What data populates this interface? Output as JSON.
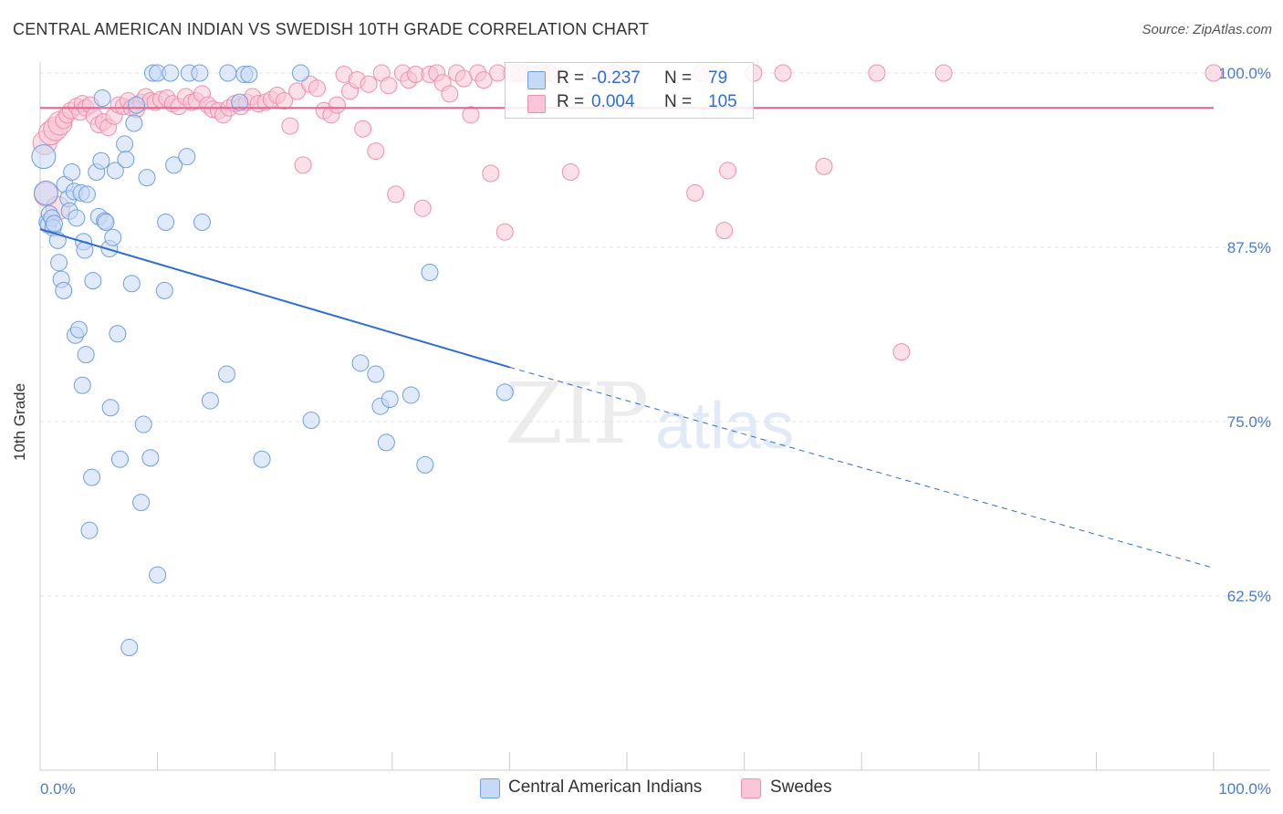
{
  "title": "CENTRAL AMERICAN INDIAN VS SWEDISH 10TH GRADE CORRELATION CHART",
  "source": "Source: ZipAtlas.com",
  "watermark": {
    "zip": "ZIP",
    "atlas": "atlas"
  },
  "legend": {
    "r_label": "R =",
    "n_label": "N =",
    "series": [
      {
        "r": "-0.237",
        "n": "79"
      },
      {
        "r": "0.004",
        "n": "105"
      }
    ]
  },
  "bottom_legend": [
    "Central American Indians",
    "Swedes"
  ],
  "colors": {
    "blue_fill": "#c6d9f5",
    "blue_stroke": "#6f9fe0",
    "blue_line": "#2f6dd1",
    "pink_fill": "#f8c6d6",
    "pink_stroke": "#ee8fae",
    "pink_line": "#e8638c",
    "grid": "#e3e3e3",
    "axis_label": "#4a7bd0"
  },
  "chart_data": {
    "type": "scatter",
    "title": "CENTRAL AMERICAN INDIAN VS SWEDISH 10TH GRADE CORRELATION CHART",
    "xlabel": "",
    "ylabel": "10th Grade",
    "xlim": [
      0,
      100
    ],
    "ylim": [
      50,
      100
    ],
    "x_tick_labels": [
      "0.0%",
      "100.0%"
    ],
    "y_ticks": [
      100.0,
      87.5,
      75.0,
      62.5
    ],
    "y_tick_labels": [
      "100.0%",
      "87.5%",
      "75.0%",
      "62.5%"
    ],
    "grid": true,
    "legend_placement": "top-center",
    "series": [
      {
        "name": "Central American Indians",
        "r": -0.237,
        "n": 79,
        "trend": {
          "x0": 0,
          "y0": 88.8,
          "x1": 40,
          "y1": 78.9,
          "dash_to_x": 100,
          "dash_to_y": 64.5
        },
        "points": [
          [
            0.3,
            94.0
          ],
          [
            0.5,
            91.4
          ],
          [
            0.6,
            89.3
          ],
          [
            0.7,
            89.1
          ],
          [
            0.8,
            89.9
          ],
          [
            1.0,
            89.6
          ],
          [
            1.1,
            88.9
          ],
          [
            1.2,
            89.2
          ],
          [
            1.5,
            88.0
          ],
          [
            1.6,
            86.4
          ],
          [
            1.8,
            85.2
          ],
          [
            2.0,
            84.4
          ],
          [
            2.1,
            92.0
          ],
          [
            2.4,
            91.0
          ],
          [
            2.5,
            90.1
          ],
          [
            2.7,
            92.9
          ],
          [
            2.9,
            91.5
          ],
          [
            3.0,
            81.2
          ],
          [
            3.1,
            89.6
          ],
          [
            3.3,
            81.6
          ],
          [
            3.5,
            91.4
          ],
          [
            3.6,
            77.6
          ],
          [
            3.7,
            87.9
          ],
          [
            3.8,
            87.3
          ],
          [
            3.9,
            79.8
          ],
          [
            4.0,
            91.3
          ],
          [
            4.2,
            67.2
          ],
          [
            4.4,
            71.0
          ],
          [
            4.5,
            85.1
          ],
          [
            4.8,
            92.9
          ],
          [
            5.0,
            89.7
          ],
          [
            5.2,
            93.7
          ],
          [
            5.3,
            98.2
          ],
          [
            5.5,
            89.4
          ],
          [
            5.6,
            89.3
          ],
          [
            5.9,
            87.4
          ],
          [
            6.0,
            76.0
          ],
          [
            6.2,
            88.2
          ],
          [
            6.4,
            93.0
          ],
          [
            6.6,
            81.3
          ],
          [
            6.8,
            72.3
          ],
          [
            7.2,
            94.9
          ],
          [
            7.3,
            93.8
          ],
          [
            7.6,
            58.8
          ],
          [
            7.8,
            84.9
          ],
          [
            8.0,
            96.4
          ],
          [
            8.2,
            97.7
          ],
          [
            8.6,
            69.2
          ],
          [
            8.8,
            74.8
          ],
          [
            9.1,
            92.5
          ],
          [
            9.4,
            72.4
          ],
          [
            9.6,
            100
          ],
          [
            10.0,
            100
          ],
          [
            10.0,
            64.0
          ],
          [
            10.6,
            84.4
          ],
          [
            10.7,
            89.3
          ],
          [
            11.1,
            100
          ],
          [
            11.4,
            93.4
          ],
          [
            12.5,
            94.0
          ],
          [
            12.7,
            100
          ],
          [
            13.6,
            100
          ],
          [
            13.8,
            89.3
          ],
          [
            14.5,
            76.5
          ],
          [
            15.9,
            78.4
          ],
          [
            16.0,
            100
          ],
          [
            17.0,
            97.9
          ],
          [
            17.4,
            99.9
          ],
          [
            17.8,
            99.9
          ],
          [
            18.9,
            72.3
          ],
          [
            22.2,
            100
          ],
          [
            23.1,
            75.1
          ],
          [
            27.3,
            79.2
          ],
          [
            28.6,
            78.4
          ],
          [
            29.0,
            76.1
          ],
          [
            29.5,
            73.5
          ],
          [
            29.8,
            76.6
          ],
          [
            31.6,
            76.9
          ],
          [
            32.8,
            71.9
          ],
          [
            33.2,
            85.7
          ],
          [
            39.6,
            77.1
          ]
        ]
      },
      {
        "name": "Swedes",
        "r": 0.004,
        "n": 105,
        "trend": {
          "x0": 0,
          "y0": 97.5,
          "x1": 100,
          "y1": 97.5
        },
        "points": [
          [
            0.4,
            95.0
          ],
          [
            0.5,
            91.3
          ],
          [
            0.9,
            95.7
          ],
          [
            1.3,
            96.0
          ],
          [
            1.5,
            90.3
          ],
          [
            1.7,
            96.4
          ],
          [
            2.0,
            96.6
          ],
          [
            2.3,
            97.0
          ],
          [
            2.6,
            97.3
          ],
          [
            3.1,
            97.6
          ],
          [
            3.4,
            97.2
          ],
          [
            3.6,
            97.8
          ],
          [
            3.9,
            97.5
          ],
          [
            4.3,
            97.7
          ],
          [
            4.6,
            96.9
          ],
          [
            5.0,
            96.3
          ],
          [
            5.4,
            96.5
          ],
          [
            5.8,
            96.1
          ],
          [
            6.3,
            96.9
          ],
          [
            6.7,
            97.7
          ],
          [
            7.1,
            97.6
          ],
          [
            7.5,
            98.0
          ],
          [
            7.8,
            97.5
          ],
          [
            8.2,
            97.4
          ],
          [
            8.6,
            97.9
          ],
          [
            9.0,
            98.3
          ],
          [
            9.4,
            98.0
          ],
          [
            9.8,
            97.9
          ],
          [
            10.3,
            98.1
          ],
          [
            10.8,
            98.2
          ],
          [
            11.3,
            97.8
          ],
          [
            11.8,
            97.6
          ],
          [
            12.4,
            98.3
          ],
          [
            12.9,
            97.9
          ],
          [
            13.3,
            98.0
          ],
          [
            13.8,
            98.5
          ],
          [
            14.3,
            97.7
          ],
          [
            14.7,
            97.4
          ],
          [
            15.2,
            97.3
          ],
          [
            15.6,
            97.0
          ],
          [
            16.1,
            97.5
          ],
          [
            16.6,
            97.8
          ],
          [
            17.1,
            97.6
          ],
          [
            17.6,
            97.9
          ],
          [
            18.1,
            98.3
          ],
          [
            18.6,
            97.8
          ],
          [
            19.2,
            97.9
          ],
          [
            19.7,
            98.1
          ],
          [
            20.2,
            98.4
          ],
          [
            20.8,
            98.0
          ],
          [
            21.3,
            96.2
          ],
          [
            21.9,
            98.7
          ],
          [
            22.4,
            93.4
          ],
          [
            23.0,
            99.2
          ],
          [
            23.6,
            98.9
          ],
          [
            24.2,
            97.3
          ],
          [
            24.8,
            97.0
          ],
          [
            25.3,
            97.7
          ],
          [
            25.9,
            99.9
          ],
          [
            26.4,
            98.7
          ],
          [
            27.0,
            99.5
          ],
          [
            27.5,
            96.0
          ],
          [
            28.0,
            99.2
          ],
          [
            28.6,
            94.4
          ],
          [
            29.1,
            100
          ],
          [
            29.7,
            99.1
          ],
          [
            30.3,
            91.3
          ],
          [
            30.9,
            100
          ],
          [
            31.4,
            99.5
          ],
          [
            32.0,
            99.9
          ],
          [
            32.6,
            90.3
          ],
          [
            33.2,
            99.9
          ],
          [
            33.8,
            100
          ],
          [
            34.3,
            99.3
          ],
          [
            34.9,
            98.5
          ],
          [
            35.5,
            100
          ],
          [
            36.1,
            99.6
          ],
          [
            36.7,
            97.0
          ],
          [
            37.3,
            100
          ],
          [
            37.8,
            99.5
          ],
          [
            38.4,
            92.8
          ],
          [
            39.0,
            100
          ],
          [
            39.6,
            88.6
          ],
          [
            40.2,
            100
          ],
          [
            40.8,
            100
          ],
          [
            41.4,
            100
          ],
          [
            42.0,
            99.9
          ],
          [
            42.7,
            100
          ],
          [
            43.4,
            100
          ],
          [
            44.0,
            99.8
          ],
          [
            45.2,
            92.9
          ],
          [
            47.3,
            100
          ],
          [
            48.8,
            100
          ],
          [
            50.2,
            100
          ],
          [
            55.8,
            91.4
          ],
          [
            56.4,
            100
          ],
          [
            58.3,
            88.7
          ],
          [
            58.6,
            93.0
          ],
          [
            60.8,
            100
          ],
          [
            63.3,
            100
          ],
          [
            66.8,
            93.3
          ],
          [
            71.3,
            100
          ],
          [
            73.4,
            80.0
          ],
          [
            77.0,
            100
          ],
          [
            100,
            100
          ]
        ]
      }
    ]
  }
}
